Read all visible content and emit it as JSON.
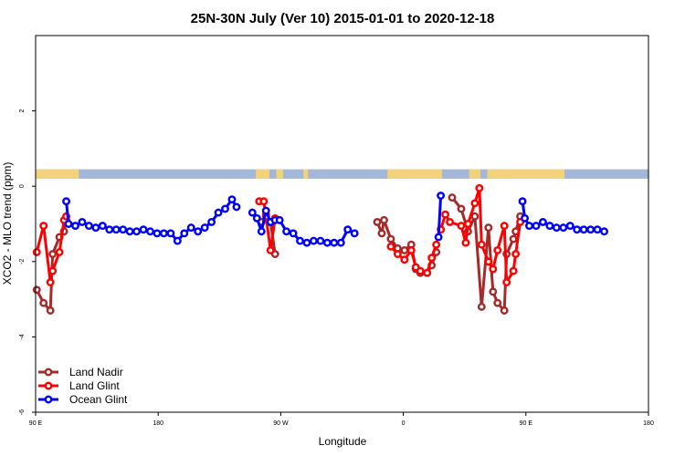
{
  "chart_data": {
    "type": "line",
    "title": "25N-30N July (Ver 10)   2015-01-01 to 2020-12-18",
    "xlabel": "Longitude",
    "ylabel": "XCO2 - MLO trend (ppm)",
    "xlim": [
      -90,
      180
    ],
    "ylim": [
      -6,
      4
    ],
    "x_ticks": [
      {
        "value": -90,
        "label": "90 E"
      },
      {
        "value": -36,
        "label": "180"
      },
      {
        "value": 18,
        "label": "90 W"
      },
      {
        "value": 72,
        "label": "0"
      },
      {
        "value": 126,
        "label": "90 E"
      },
      {
        "value": 180,
        "label": "180"
      }
    ],
    "y_ticks": [
      {
        "value": -6,
        "label": "-6"
      },
      {
        "value": -4,
        "label": "-4"
      },
      {
        "value": -2,
        "label": "-2"
      },
      {
        "value": 0,
        "label": "0"
      },
      {
        "value": 2,
        "label": "2"
      }
    ],
    "legend_position": "bottom-left",
    "land_ocean_strip": {
      "ymin": 0.2,
      "ymax": 0.45,
      "colors": {
        "ocean": "#a3b8d8",
        "land": "#f2d27a"
      },
      "land_ranges": [
        [
          -90,
          -71
        ],
        [
          7,
          13
        ],
        [
          16,
          19
        ],
        [
          28,
          30
        ],
        [
          65,
          89
        ],
        [
          101,
          106
        ],
        [
          109,
          143
        ]
      ]
    },
    "series": [
      {
        "name": "Land Nadir",
        "color": "#a52a2a",
        "segments": [
          [
            [
              -89.5,
              -2.75
            ],
            [
              -86.5,
              -3.1
            ],
            [
              -83.5,
              -3.3
            ],
            [
              -82.5,
              -1.8
            ],
            [
              -79.5,
              -1.35
            ],
            [
              -77.5,
              -1.2
            ],
            [
              -76.5,
              -0.9
            ]
          ],
          [
            [
              9.5,
              -0.95
            ],
            [
              11.5,
              -0.75
            ],
            [
              13.5,
              -0.95
            ],
            [
              15.5,
              -1.8
            ]
          ],
          [
            [
              60.5,
              -0.95
            ],
            [
              62.5,
              -1.25
            ],
            [
              63.5,
              -0.9
            ],
            [
              66.5,
              -1.4
            ],
            [
              69.5,
              -1.65
            ],
            [
              72.5,
              -1.7
            ],
            [
              75.5,
              -1.55
            ],
            [
              77.5,
              -2.2
            ],
            [
              79.5,
              -2.3
            ],
            [
              82.5,
              -2.3
            ],
            [
              84.5,
              -2.1
            ],
            [
              86.5,
              -1.75
            ]
          ],
          [
            [
              93.5,
              -0.3
            ],
            [
              97.5,
              -0.6
            ],
            [
              100.5,
              -1.2
            ],
            [
              103.5,
              -0.8
            ],
            [
              106.5,
              -3.2
            ],
            [
              109.5,
              -1.1
            ],
            [
              111.5,
              -2.8
            ],
            [
              113.5,
              -3.1
            ],
            [
              116.5,
              -3.3
            ],
            [
              117.5,
              -1.8
            ],
            [
              120.5,
              -1.4
            ],
            [
              121.5,
              -1.2
            ],
            [
              123.5,
              -0.8
            ]
          ]
        ]
      },
      {
        "name": "Land Glint",
        "color": "#ff0000",
        "segments": [
          [
            [
              -89.5,
              -1.75
            ],
            [
              -86.5,
              -1.05
            ],
            [
              -83.5,
              -2.55
            ],
            [
              -82.5,
              -2.25
            ],
            [
              -79.5,
              -1.75
            ],
            [
              -77.5,
              -0.9
            ],
            [
              -76.5,
              -0.8
            ]
          ],
          [
            [
              8.5,
              -0.4
            ],
            [
              10.5,
              -0.4
            ],
            [
              11.5,
              -0.8
            ],
            [
              13.5,
              -1.7
            ],
            [
              15.5,
              -0.85
            ]
          ],
          [
            [
              66.5,
              -1.6
            ],
            [
              69.5,
              -1.8
            ],
            [
              72.5,
              -1.95
            ],
            [
              75.5,
              -1.7
            ],
            [
              77.5,
              -2.15
            ],
            [
              79.5,
              -2.25
            ],
            [
              82.5,
              -2.3
            ],
            [
              84.5,
              -1.9
            ],
            [
              86.5,
              -1.55
            ]
          ],
          [
            [
              88.5,
              -1.15
            ],
            [
              90.5,
              -0.75
            ],
            [
              92.5,
              -0.95
            ],
            [
              97.5,
              -1.05
            ],
            [
              99.5,
              -1.5
            ],
            [
              100.5,
              -1.0
            ],
            [
              103.5,
              -0.45
            ],
            [
              105.5,
              -0.05
            ],
            [
              106.5,
              -1.55
            ],
            [
              109.5,
              -2.0
            ],
            [
              111.5,
              -2.2
            ],
            [
              113.5,
              -1.7
            ],
            [
              116.5,
              -1.05
            ],
            [
              117.5,
              -2.55
            ],
            [
              120.5,
              -2.25
            ],
            [
              121.5,
              -1.8
            ],
            [
              123.5,
              -0.95
            ]
          ]
        ]
      },
      {
        "name": "Ocean Glint",
        "color": "#0000ff",
        "segments": [
          [
            [
              -76.5,
              -0.4
            ],
            [
              -75.5,
              -1.0
            ],
            [
              -72.5,
              -1.05
            ],
            [
              -69.5,
              -0.95
            ],
            [
              -66.5,
              -1.05
            ],
            [
              -63.5,
              -1.1
            ],
            [
              -60.5,
              -1.05
            ],
            [
              -57.5,
              -1.15
            ],
            [
              -54.5,
              -1.15
            ],
            [
              -51.5,
              -1.15
            ],
            [
              -48.5,
              -1.2
            ],
            [
              -45.5,
              -1.2
            ],
            [
              -42.5,
              -1.15
            ],
            [
              -39.5,
              -1.2
            ],
            [
              -36.5,
              -1.25
            ],
            [
              -33.5,
              -1.25
            ],
            [
              -30.5,
              -1.25
            ],
            [
              -27.5,
              -1.45
            ],
            [
              -24.5,
              -1.25
            ],
            [
              -21.5,
              -1.1
            ],
            [
              -18.5,
              -1.2
            ],
            [
              -15.5,
              -1.1
            ],
            [
              -12.5,
              -0.95
            ],
            [
              -9.5,
              -0.7
            ],
            [
              -6.5,
              -0.6
            ],
            [
              -3.5,
              -0.35
            ],
            [
              -1.5,
              -0.55
            ]
          ],
          [
            [
              5.5,
              -0.7
            ],
            [
              7.5,
              -0.85
            ],
            [
              9.5,
              -1.2
            ],
            [
              11.5,
              -0.65
            ],
            [
              13.5,
              -0.95
            ],
            [
              15.5,
              -0.9
            ],
            [
              17.5,
              -0.9
            ],
            [
              20.5,
              -1.2
            ],
            [
              23.5,
              -1.25
            ],
            [
              26.5,
              -1.45
            ],
            [
              29.5,
              -1.5
            ],
            [
              32.5,
              -1.45
            ],
            [
              35.5,
              -1.45
            ],
            [
              38.5,
              -1.5
            ],
            [
              41.5,
              -1.5
            ],
            [
              44.5,
              -1.5
            ],
            [
              47.5,
              -1.15
            ],
            [
              50.5,
              -1.25
            ]
          ],
          [
            [
              87.5,
              -1.35
            ],
            [
              88.5,
              -0.25
            ]
          ],
          [
            [
              124.5,
              -0.4
            ],
            [
              125.5,
              -0.85
            ],
            [
              127.5,
              -1.05
            ],
            [
              130.5,
              -1.05
            ],
            [
              133.5,
              -0.95
            ],
            [
              136.5,
              -1.05
            ],
            [
              139.5,
              -1.1
            ],
            [
              142.5,
              -1.1
            ],
            [
              145.5,
              -1.05
            ],
            [
              148.5,
              -1.15
            ],
            [
              151.5,
              -1.15
            ],
            [
              154.5,
              -1.15
            ],
            [
              157.5,
              -1.15
            ],
            [
              160.5,
              -1.2
            ]
          ]
        ]
      }
    ]
  }
}
